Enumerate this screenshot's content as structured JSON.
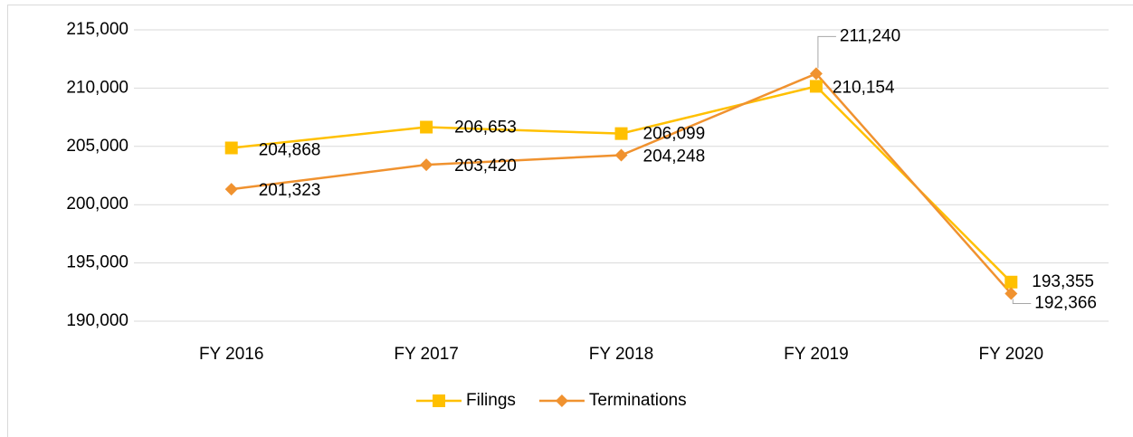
{
  "chart_data": {
    "type": "line",
    "categories": [
      "FY 2016",
      "FY 2017",
      "FY 2018",
      "FY 2019",
      "FY 2020"
    ],
    "series": [
      {
        "name": "Filings",
        "color": "#FFC000",
        "marker": "square",
        "values": [
          204868,
          206653,
          206099,
          210154,
          193355
        ],
        "value_labels": [
          "204,868",
          "206,653",
          "206,099",
          "210,154",
          "193,355"
        ]
      },
      {
        "name": "Terminations",
        "color": "#F0922F",
        "marker": "diamond",
        "values": [
          201323,
          203420,
          204248,
          211240,
          192366
        ],
        "value_labels": [
          "201,323",
          "203,420",
          "204,248",
          "211,240",
          "192,366"
        ]
      }
    ],
    "ylim": [
      190000,
      215000
    ],
    "yticks": [
      {
        "value": 190000,
        "label": "190,000"
      },
      {
        "value": 195000,
        "label": "195,000"
      },
      {
        "value": 200000,
        "label": "200,000"
      },
      {
        "value": 205000,
        "label": "205,000"
      },
      {
        "value": 210000,
        "label": "210,000"
      },
      {
        "value": 215000,
        "label": "215,000"
      }
    ],
    "grid": true,
    "legend": "bottom"
  }
}
